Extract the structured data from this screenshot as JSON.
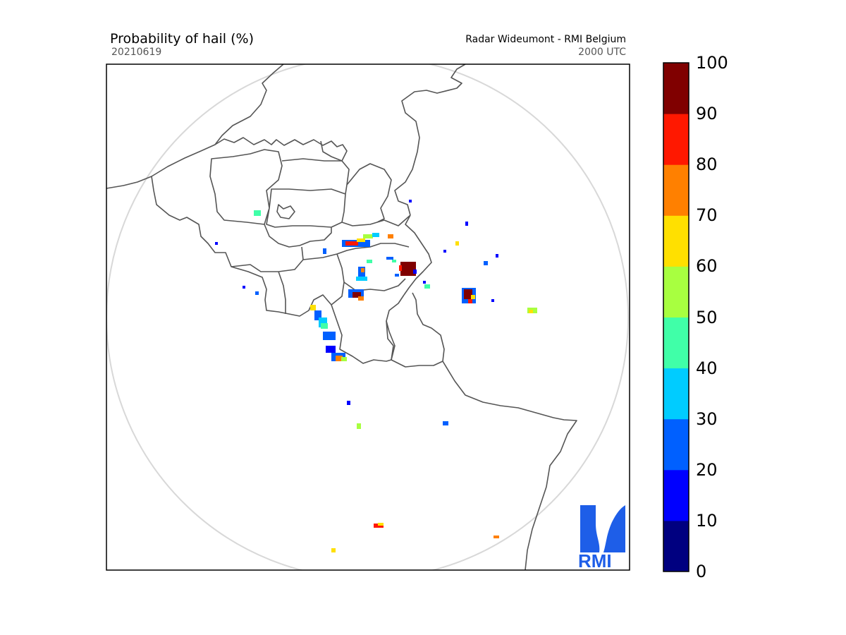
{
  "header": {
    "title": "Probability of hail (%)",
    "date": "20210619",
    "source": "Radar Wideumont - RMI Belgium",
    "time": "2000 UTC"
  },
  "colorbar": {
    "ticks": [
      "0",
      "10",
      "20",
      "30",
      "40",
      "50",
      "60",
      "70",
      "80",
      "90",
      "100"
    ],
    "colors": [
      "#000080",
      "#0000ff",
      "#0060ff",
      "#00ccff",
      "#40ffa8",
      "#a8ff40",
      "#ffe000",
      "#ff8000",
      "#ff1800",
      "#800000"
    ]
  },
  "logo": {
    "text": "RMI",
    "color": "#1e5ee8"
  },
  "colors": {
    "border": "#555555",
    "range_circle": "#d8d8d8"
  }
}
